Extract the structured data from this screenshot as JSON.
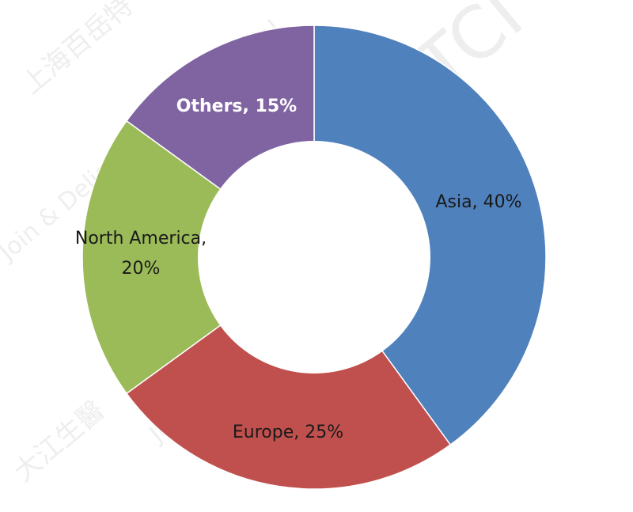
{
  "chart_data": {
    "type": "pie",
    "variant": "donut",
    "slices": [
      {
        "label": "Asia, 40%",
        "value": 40,
        "color": "#4f81bd"
      },
      {
        "label": "Europe, 25%",
        "value": 25,
        "color": "#c0504d"
      },
      {
        "label": "North America, 20%",
        "value": 20,
        "color": "#9bbb59"
      },
      {
        "label": "Others, 15%",
        "value": 15,
        "color": "#8064a2"
      }
    ],
    "title": "",
    "legend": "none"
  },
  "watermark": {
    "lines": [
      "上海百岳特",
      "Join & Delight consumer's life!",
      "大江生醫",
      "TCI"
    ]
  }
}
